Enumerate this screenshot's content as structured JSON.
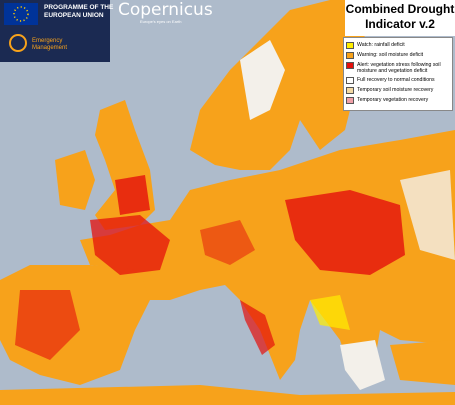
{
  "header": {
    "eu_programme": [
      "PROGRAMME OF THE",
      "EUROPEAN UNION"
    ],
    "copernicus": "Copernicus",
    "copernicus_tagline": "Europe's eyes on Earth",
    "service": [
      "Emergency",
      "Management"
    ]
  },
  "title": [
    "Combined Drought",
    "Indicator v.2"
  ],
  "legend": [
    {
      "label": "Watch: rainfall deficit",
      "color": "#ffee00"
    },
    {
      "label": "Warning: soil moisture deficit",
      "color": "#f7a21b"
    },
    {
      "label": "Alert: vegetation stress following soil moisture and vegetation deficit",
      "color": "#e4100c"
    },
    {
      "label": "Full recovery to normal conditions",
      "color": "#ffffff"
    },
    {
      "label": "Temporary soil moisture recovery",
      "color": "#f3d9a4"
    },
    {
      "label": "Temporary vegetation recovery",
      "color": "#f0a0a8"
    }
  ]
}
